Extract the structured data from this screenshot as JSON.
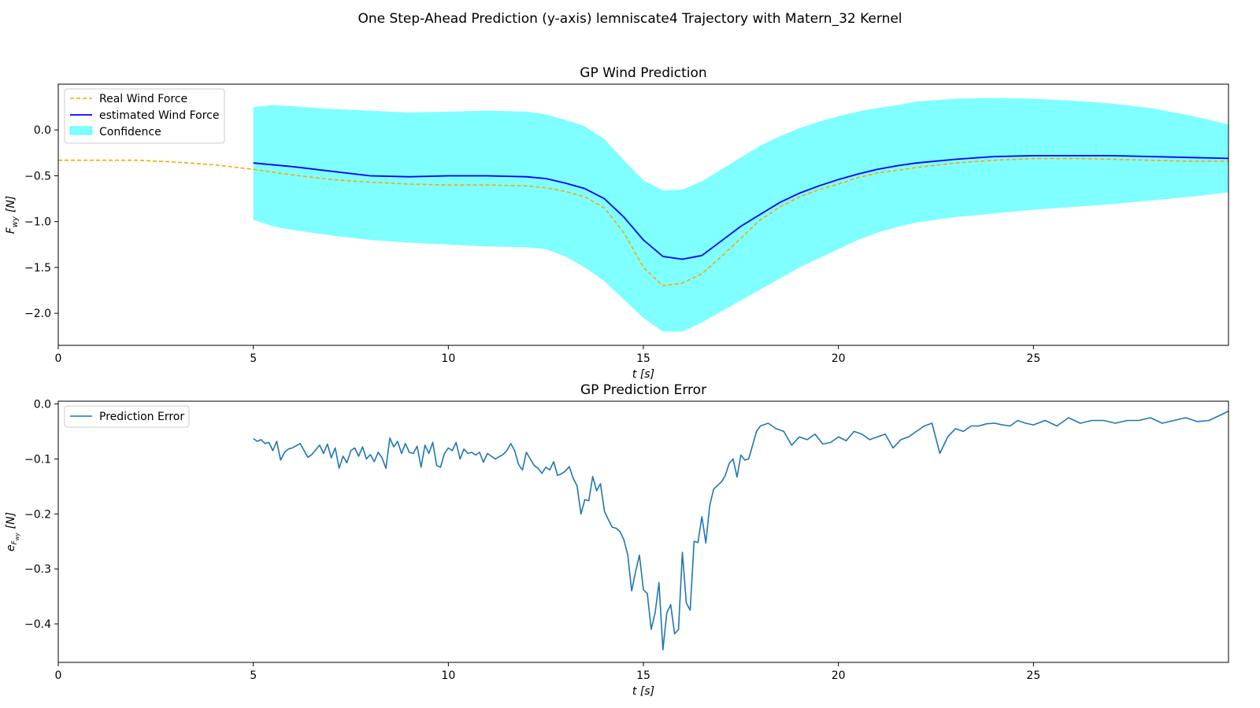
{
  "figure": {
    "suptitle": "One Step-Ahead Prediction (y-axis) lemniscate4 Trajectory with Matern_32 Kernel"
  },
  "colors": {
    "real": "#ffa500",
    "estimated": "#0000ff",
    "confidence": "#00ffff",
    "error": "#1f77b4"
  },
  "chart_data": [
    {
      "type": "line",
      "title": "GP Wind Prediction",
      "xlabel": "t [s]",
      "ylabel_main": "F",
      "ylabel_sub": "wy",
      "ylabel_unit": "[N]",
      "xlim": [
        0,
        30
      ],
      "ylim": [
        -2.35,
        0.5
      ],
      "xticks": [
        0,
        5,
        10,
        15,
        20,
        25
      ],
      "xtick_labels": [
        "0",
        "5",
        "10",
        "15",
        "20",
        "25"
      ],
      "yticks": [
        0.0,
        -0.5,
        -1.0,
        -1.5,
        -2.0
      ],
      "ytick_labels": [
        "0.0",
        "−0.5",
        "−1.0",
        "−1.5",
        "−2.0"
      ],
      "grid": false,
      "legend_position": "top-left",
      "legend": [
        "Real Wind Force",
        "estimated Wind Force",
        "Confidence"
      ],
      "series": [
        {
          "name": "Real Wind Force",
          "style": "dashed",
          "x": [
            0,
            1,
            2,
            2.5,
            3,
            4,
            5,
            6,
            7,
            8,
            9,
            10,
            11,
            12,
            12.5,
            13,
            13.5,
            14,
            14.5,
            15,
            15.5,
            16,
            16.5,
            17,
            17.5,
            18,
            18.5,
            19,
            19.5,
            20,
            20.5,
            21,
            21.5,
            22,
            23,
            24,
            25,
            26,
            27,
            28,
            29,
            30
          ],
          "y": [
            -0.33,
            -0.33,
            -0.33,
            -0.34,
            -0.35,
            -0.38,
            -0.43,
            -0.49,
            -0.54,
            -0.57,
            -0.59,
            -0.6,
            -0.6,
            -0.61,
            -0.63,
            -0.67,
            -0.73,
            -0.85,
            -1.12,
            -1.5,
            -1.7,
            -1.67,
            -1.57,
            -1.38,
            -1.18,
            -0.98,
            -0.84,
            -0.73,
            -0.65,
            -0.59,
            -0.52,
            -0.47,
            -0.44,
            -0.41,
            -0.36,
            -0.33,
            -0.31,
            -0.31,
            -0.32,
            -0.33,
            -0.34,
            -0.34
          ]
        },
        {
          "name": "estimated Wind Force",
          "style": "solid",
          "x": [
            5,
            6,
            7,
            8,
            9,
            10,
            11,
            12,
            12.5,
            13,
            13.5,
            14,
            14.5,
            15,
            15.5,
            16,
            16.5,
            17,
            17.5,
            18,
            18.5,
            19,
            19.5,
            20,
            20.5,
            21,
            21.5,
            22,
            23,
            24,
            25,
            26,
            27,
            28,
            29,
            30
          ],
          "y": [
            -0.36,
            -0.4,
            -0.45,
            -0.5,
            -0.51,
            -0.5,
            -0.5,
            -0.51,
            -0.53,
            -0.58,
            -0.64,
            -0.75,
            -0.95,
            -1.2,
            -1.38,
            -1.41,
            -1.37,
            -1.21,
            -1.05,
            -0.92,
            -0.79,
            -0.69,
            -0.61,
            -0.54,
            -0.48,
            -0.43,
            -0.39,
            -0.36,
            -0.32,
            -0.29,
            -0.28,
            -0.28,
            -0.28,
            -0.29,
            -0.3,
            -0.31
          ]
        }
      ],
      "confidence_band": {
        "name": "Confidence",
        "x": [
          5,
          5.5,
          6,
          7,
          8,
          9,
          10,
          11,
          12,
          12.5,
          13,
          13.5,
          14,
          14.5,
          15,
          15.5,
          16,
          16.5,
          17,
          17.5,
          18,
          18.5,
          19,
          19.5,
          20,
          20.5,
          21,
          21.5,
          22,
          23,
          24,
          25,
          26,
          27,
          28,
          29,
          30
        ],
        "upper": [
          0.25,
          0.27,
          0.26,
          0.23,
          0.21,
          0.19,
          0.2,
          0.21,
          0.2,
          0.17,
          0.11,
          0.04,
          -0.1,
          -0.33,
          -0.55,
          -0.66,
          -0.65,
          -0.56,
          -0.43,
          -0.3,
          -0.17,
          -0.07,
          0.02,
          0.09,
          0.15,
          0.2,
          0.24,
          0.27,
          0.31,
          0.34,
          0.35,
          0.34,
          0.32,
          0.29,
          0.24,
          0.16,
          0.06
        ],
        "lower": [
          -0.98,
          -1.05,
          -1.09,
          -1.15,
          -1.2,
          -1.23,
          -1.25,
          -1.27,
          -1.28,
          -1.3,
          -1.38,
          -1.5,
          -1.65,
          -1.85,
          -2.05,
          -2.2,
          -2.2,
          -2.1,
          -1.98,
          -1.86,
          -1.74,
          -1.62,
          -1.5,
          -1.4,
          -1.3,
          -1.2,
          -1.12,
          -1.06,
          -1.01,
          -0.95,
          -0.91,
          -0.87,
          -0.84,
          -0.81,
          -0.77,
          -0.73,
          -0.68
        ]
      }
    },
    {
      "type": "line",
      "title": "GP Prediction Error",
      "xlabel": "t [s]",
      "ylabel_main": "e",
      "ylabel_sub": "F",
      "ylabel_subsub": "wy",
      "ylabel_unit": "[N]",
      "xlim": [
        0,
        30
      ],
      "ylim": [
        -0.47,
        0.005
      ],
      "xticks": [
        0,
        5,
        10,
        15,
        20,
        25
      ],
      "xtick_labels": [
        "0",
        "5",
        "10",
        "15",
        "20",
        "25"
      ],
      "yticks": [
        0.0,
        -0.1,
        -0.2,
        -0.3,
        -0.4
      ],
      "ytick_labels": [
        "0.0",
        "−0.1",
        "−0.2",
        "−0.3",
        "−0.4"
      ],
      "grid": false,
      "legend_position": "top-left",
      "legend": [
        "Prediction Error"
      ],
      "series": [
        {
          "name": "Prediction Error",
          "x": [
            5.0,
            5.1,
            5.2,
            5.3,
            5.4,
            5.5,
            5.6,
            5.7,
            5.8,
            5.9,
            6.0,
            6.2,
            6.4,
            6.5,
            6.7,
            6.8,
            6.9,
            7.0,
            7.1,
            7.2,
            7.3,
            7.4,
            7.5,
            7.6,
            7.7,
            7.8,
            7.9,
            8.0,
            8.1,
            8.2,
            8.3,
            8.4,
            8.5,
            8.6,
            8.7,
            8.8,
            8.9,
            9.0,
            9.1,
            9.2,
            9.3,
            9.4,
            9.5,
            9.6,
            9.7,
            9.8,
            9.9,
            10.0,
            10.1,
            10.2,
            10.3,
            10.4,
            10.5,
            10.6,
            10.7,
            10.8,
            10.9,
            11.0,
            11.2,
            11.4,
            11.5,
            11.6,
            11.7,
            11.8,
            11.9,
            12.0,
            12.1,
            12.2,
            12.3,
            12.4,
            12.5,
            12.6,
            12.7,
            12.8,
            12.9,
            13.0,
            13.1,
            13.2,
            13.3,
            13.4,
            13.5,
            13.6,
            13.7,
            13.8,
            13.9,
            14.0,
            14.1,
            14.2,
            14.3,
            14.4,
            14.5,
            14.6,
            14.7,
            14.8,
            14.9,
            15.0,
            15.1,
            15.2,
            15.3,
            15.4,
            15.5,
            15.6,
            15.7,
            15.8,
            15.9,
            16.0,
            16.1,
            16.2,
            16.3,
            16.4,
            16.5,
            16.6,
            16.7,
            16.8,
            16.9,
            17.0,
            17.1,
            17.2,
            17.3,
            17.4,
            17.5,
            17.6,
            17.7,
            17.8,
            17.9,
            18.0,
            18.2,
            18.4,
            18.6,
            18.8,
            19.0,
            19.2,
            19.4,
            19.6,
            19.8,
            20.0,
            20.2,
            20.4,
            20.6,
            20.8,
            21.0,
            21.2,
            21.4,
            21.6,
            21.8,
            22.0,
            22.2,
            22.4,
            22.6,
            22.8,
            23.0,
            23.2,
            23.4,
            23.6,
            23.8,
            24.0,
            24.2,
            24.4,
            24.6,
            24.8,
            25.0,
            25.3,
            25.6,
            25.9,
            26.2,
            26.5,
            26.8,
            27.1,
            27.4,
            27.7,
            28.0,
            28.3,
            28.6,
            28.9,
            29.2,
            29.5,
            29.8,
            30.0
          ],
          "y": [
            -0.063,
            -0.068,
            -0.065,
            -0.072,
            -0.07,
            -0.085,
            -0.068,
            -0.102,
            -0.088,
            -0.082,
            -0.08,
            -0.072,
            -0.097,
            -0.092,
            -0.075,
            -0.09,
            -0.073,
            -0.098,
            -0.08,
            -0.117,
            -0.095,
            -0.107,
            -0.085,
            -0.08,
            -0.095,
            -0.078,
            -0.1,
            -0.092,
            -0.105,
            -0.088,
            -0.098,
            -0.117,
            -0.062,
            -0.078,
            -0.068,
            -0.09,
            -0.072,
            -0.088,
            -0.09,
            -0.077,
            -0.115,
            -0.075,
            -0.09,
            -0.07,
            -0.112,
            -0.115,
            -0.09,
            -0.08,
            -0.085,
            -0.07,
            -0.1,
            -0.082,
            -0.09,
            -0.088,
            -0.093,
            -0.088,
            -0.106,
            -0.09,
            -0.1,
            -0.092,
            -0.085,
            -0.072,
            -0.085,
            -0.11,
            -0.12,
            -0.088,
            -0.1,
            -0.112,
            -0.117,
            -0.126,
            -0.115,
            -0.12,
            -0.105,
            -0.13,
            -0.127,
            -0.122,
            -0.114,
            -0.135,
            -0.149,
            -0.2,
            -0.174,
            -0.176,
            -0.132,
            -0.158,
            -0.145,
            -0.195,
            -0.21,
            -0.224,
            -0.226,
            -0.232,
            -0.247,
            -0.275,
            -0.34,
            -0.305,
            -0.275,
            -0.338,
            -0.345,
            -0.41,
            -0.38,
            -0.325,
            -0.447,
            -0.38,
            -0.365,
            -0.418,
            -0.41,
            -0.27,
            -0.362,
            -0.375,
            -0.25,
            -0.252,
            -0.205,
            -0.253,
            -0.185,
            -0.155,
            -0.148,
            -0.142,
            -0.13,
            -0.108,
            -0.1,
            -0.133,
            -0.093,
            -0.102,
            -0.1,
            -0.075,
            -0.05,
            -0.04,
            -0.035,
            -0.045,
            -0.05,
            -0.075,
            -0.06,
            -0.065,
            -0.055,
            -0.073,
            -0.07,
            -0.06,
            -0.067,
            -0.05,
            -0.055,
            -0.065,
            -0.06,
            -0.055,
            -0.08,
            -0.065,
            -0.06,
            -0.05,
            -0.04,
            -0.035,
            -0.09,
            -0.06,
            -0.045,
            -0.05,
            -0.04,
            -0.04,
            -0.036,
            -0.035,
            -0.038,
            -0.04,
            -0.03,
            -0.035,
            -0.038,
            -0.03,
            -0.04,
            -0.025,
            -0.035,
            -0.03,
            -0.03,
            -0.035,
            -0.03,
            -0.03,
            -0.025,
            -0.035,
            -0.03,
            -0.025,
            -0.032,
            -0.03,
            -0.02,
            -0.013
          ]
        }
      ]
    }
  ]
}
